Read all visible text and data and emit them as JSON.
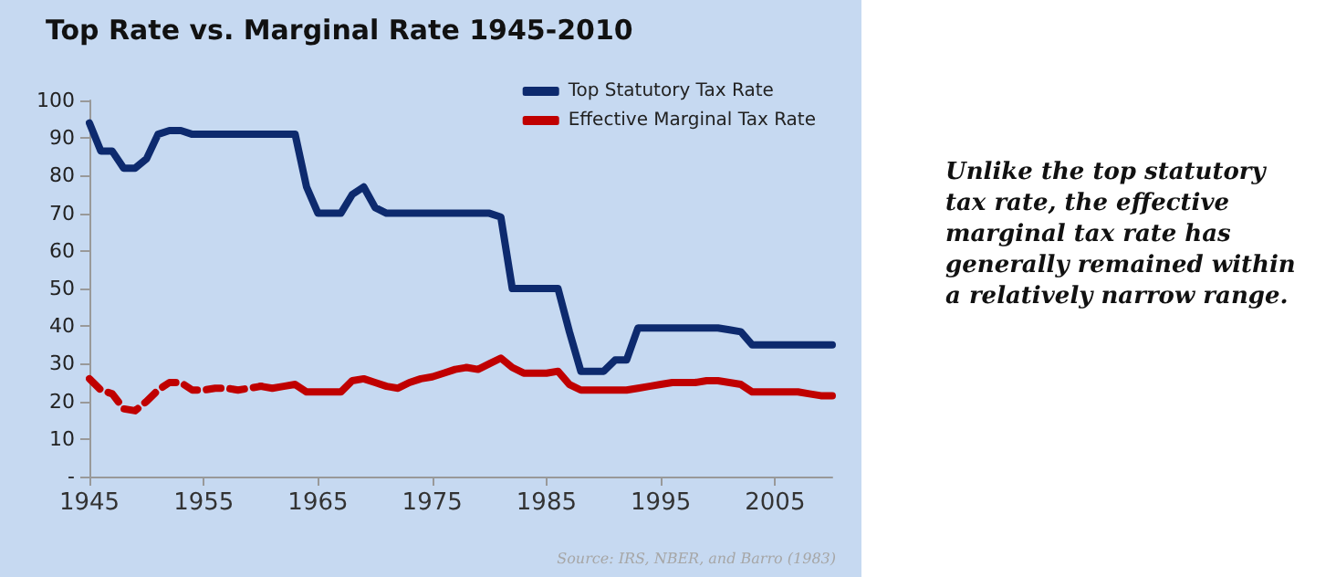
{
  "chart_data": {
    "type": "line",
    "title": "Top Rate vs. Marginal Rate 1945-2010",
    "annotations": [
      "Source: IRS, NBER, and Barro (1983)",
      "Unlike the top statutory tax rate, the effective marginal tax rate has generally remained within a relatively narrow range."
    ],
    "xlim": [
      1945,
      2010
    ],
    "xticks": [
      1945,
      1955,
      1965,
      1975,
      1985,
      1995,
      2005
    ],
    "ylim": [
      0,
      100
    ],
    "yticks": [
      {
        "value": 0,
        "label": "-"
      },
      10,
      20,
      30,
      40,
      50,
      60,
      70,
      80,
      90,
      100
    ],
    "grid": false,
    "legend": "top right",
    "marker": "none",
    "series": [
      {
        "name": "Top Statutory Tax Rate",
        "color": "#0d2a6e",
        "line_style": "solid",
        "x": [
          1945,
          1946,
          1947,
          1948,
          1949,
          1950,
          1951,
          1952,
          1953,
          1954,
          1955,
          1956,
          1957,
          1958,
          1959,
          1960,
          1961,
          1962,
          1963,
          1964,
          1965,
          1966,
          1967,
          1968,
          1969,
          1970,
          1971,
          1972,
          1973,
          1974,
          1975,
          1976,
          1977,
          1978,
          1979,
          1980,
          1981,
          1982,
          1983,
          1984,
          1985,
          1986,
          1987,
          1988,
          1989,
          1990,
          1991,
          1992,
          1993,
          1994,
          1995,
          1996,
          1997,
          1998,
          1999,
          2000,
          2001,
          2002,
          2003,
          2004,
          2005,
          2006,
          2007,
          2008,
          2009,
          2010
        ],
        "values": [
          94,
          86.5,
          86.5,
          82,
          82,
          84.5,
          91,
          92,
          92,
          91,
          91,
          91,
          91,
          91,
          91,
          91,
          91,
          91,
          91,
          77,
          70,
          70,
          70,
          75,
          77,
          71.5,
          70,
          70,
          70,
          70,
          70,
          70,
          70,
          70,
          70,
          70,
          69,
          50,
          50,
          50,
          50,
          50,
          38.5,
          28,
          28,
          28,
          31,
          31,
          39.5,
          39.5,
          39.5,
          39.5,
          39.5,
          39.5,
          39.5,
          39.5,
          39,
          38.5,
          35,
          35,
          35,
          35,
          35,
          35,
          35,
          35
        ]
      },
      {
        "color": "#c00000",
        "line_style": "dashed",
        "x": [
          1945,
          1946,
          1947,
          1948,
          1949,
          1950,
          1951,
          1952,
          1953,
          1954,
          1955,
          1956,
          1957,
          1958,
          1959,
          1960
        ],
        "values": [
          26,
          23,
          22,
          18,
          17.5,
          20,
          23,
          25,
          25,
          23,
          23,
          23.5,
          23.5,
          23,
          23.5,
          24
        ]
      },
      {
        "name": "Effective Marginal Tax Rate",
        "color": "#c00000",
        "line_style": "solid",
        "x": [
          1960,
          1961,
          1962,
          1963,
          1964,
          1965,
          1966,
          1967,
          1968,
          1969,
          1970,
          1971,
          1972,
          1973,
          1974,
          1975,
          1976,
          1977,
          1978,
          1979,
          1980,
          1981,
          1982,
          1983,
          1984,
          1985,
          1986,
          1987,
          1988,
          1989,
          1990,
          1991,
          1992,
          1993,
          1994,
          1995,
          1996,
          1997,
          1998,
          1999,
          2000,
          2001,
          2002,
          2003,
          2004,
          2005,
          2006,
          2007,
          2008,
          2009,
          2010
        ],
        "values": [
          24,
          23.5,
          24,
          24.5,
          22.5,
          22.5,
          22.5,
          22.5,
          25.5,
          26,
          25,
          24,
          23.5,
          25,
          26,
          26.5,
          27.5,
          28.5,
          29,
          28.5,
          30,
          31.5,
          29,
          27.5,
          27.5,
          27.5,
          28,
          24.5,
          23,
          23,
          23,
          23,
          23,
          23.5,
          24,
          24.5,
          25,
          25,
          25,
          25.5,
          25.5,
          25,
          24.5,
          22.5,
          22.5,
          22.5,
          22.5,
          22.5,
          22,
          21.5,
          21.5
        ]
      }
    ]
  }
}
